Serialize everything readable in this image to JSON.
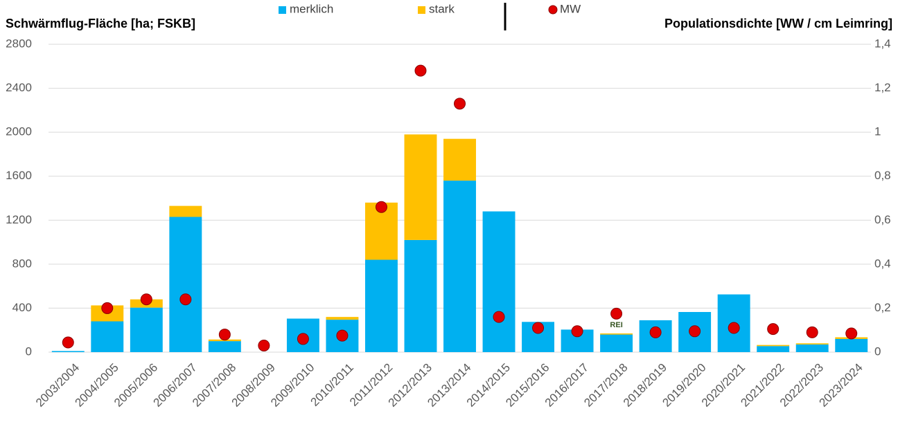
{
  "chart_data": {
    "type": "bar",
    "stacked": true,
    "y_label": "Schwärmflug-Fläche [ha; FSKB]",
    "y2_label": "Populationsdichte [WW / cm Leimring]",
    "annotation": "REI",
    "categories": [
      "2003/2004",
      "2004/2005",
      "2005/2006",
      "2006/2007",
      "2007/2008",
      "2008/2009",
      "2009/2010",
      "2010/2011",
      "2011/2012",
      "2012/2013",
      "2013/2014",
      "2014/2015",
      "2015/2016",
      "2016/2017",
      "2017/2018",
      "2018/2019",
      "2019/2020",
      "2020/2021",
      "2021/2022",
      "2022/2023",
      "2023/2024"
    ],
    "series": [
      {
        "name": "merklich",
        "color": "#00b0f0",
        "values": [
          10,
          280,
          405,
          1230,
          100,
          0,
          305,
          295,
          840,
          1020,
          1560,
          1280,
          275,
          205,
          160,
          290,
          365,
          525,
          55,
          70,
          120
        ]
      },
      {
        "name": "stark",
        "color": "#ffc000",
        "values": [
          0,
          145,
          75,
          100,
          15,
          0,
          0,
          25,
          520,
          960,
          380,
          0,
          0,
          0,
          10,
          0,
          0,
          0,
          10,
          10,
          15
        ]
      },
      {
        "name": "MW",
        "color": "#e00000",
        "type": "scatter",
        "axis": "y2",
        "values": [
          0.044,
          0.2,
          0.24,
          0.24,
          0.08,
          0.03,
          0.06,
          0.075,
          0.66,
          1.28,
          1.13,
          0.16,
          0.11,
          0.095,
          0.175,
          0.09,
          0.095,
          0.11,
          0.105,
          0.09,
          0.085
        ]
      }
    ],
    "ylim": [
      0,
      2800
    ],
    "yticks": [
      0,
      400,
      800,
      1200,
      1600,
      2000,
      2400,
      2800
    ],
    "y2lim": [
      0,
      1.4
    ],
    "y2ticks": [
      0,
      {
        "value": 0.2,
        "label": "0,2"
      },
      {
        "value": 0.4,
        "label": "0,4"
      },
      {
        "value": 0.6,
        "label": "0,6"
      },
      {
        "value": 0.8,
        "label": "0,8"
      },
      1,
      {
        "value": 1.2,
        "label": "1,2"
      },
      {
        "value": 1.4,
        "label": "1,4"
      }
    ],
    "grid": true,
    "legend": "top"
  }
}
